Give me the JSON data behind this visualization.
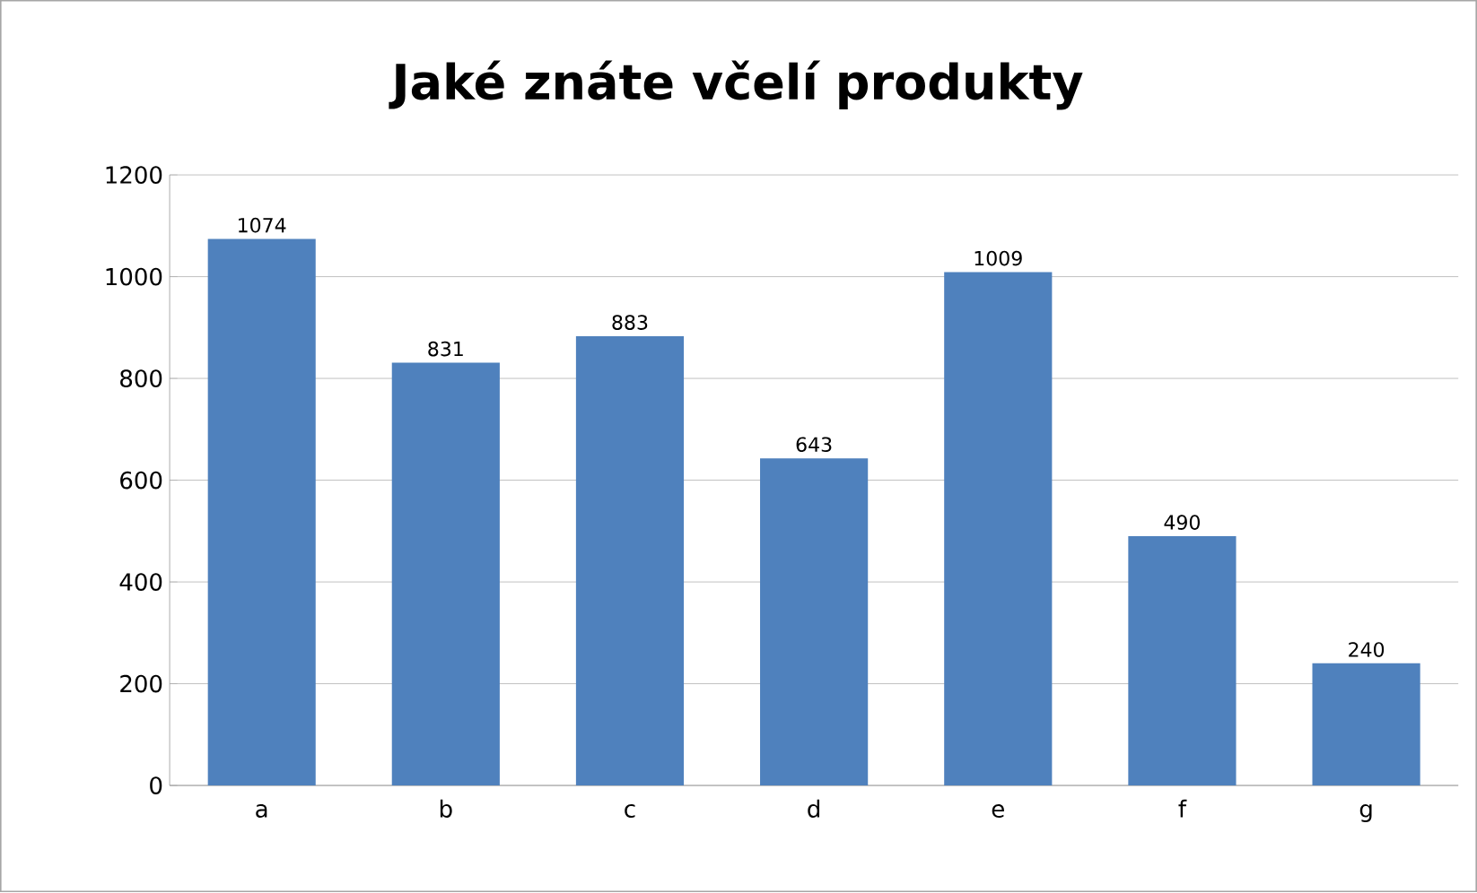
{
  "chart_data": {
    "type": "bar",
    "title": "Jaké znáte včelí produkty",
    "categories": [
      "a",
      "b",
      "c",
      "d",
      "e",
      "f",
      "g"
    ],
    "values": [
      1074,
      831,
      883,
      643,
      1009,
      490,
      240
    ],
    "color": "#4f81bd",
    "ylim": [
      0,
      1200
    ],
    "yticks": [
      0,
      200,
      400,
      600,
      800,
      1000,
      1200
    ],
    "grid": "y",
    "data_labels": true
  }
}
